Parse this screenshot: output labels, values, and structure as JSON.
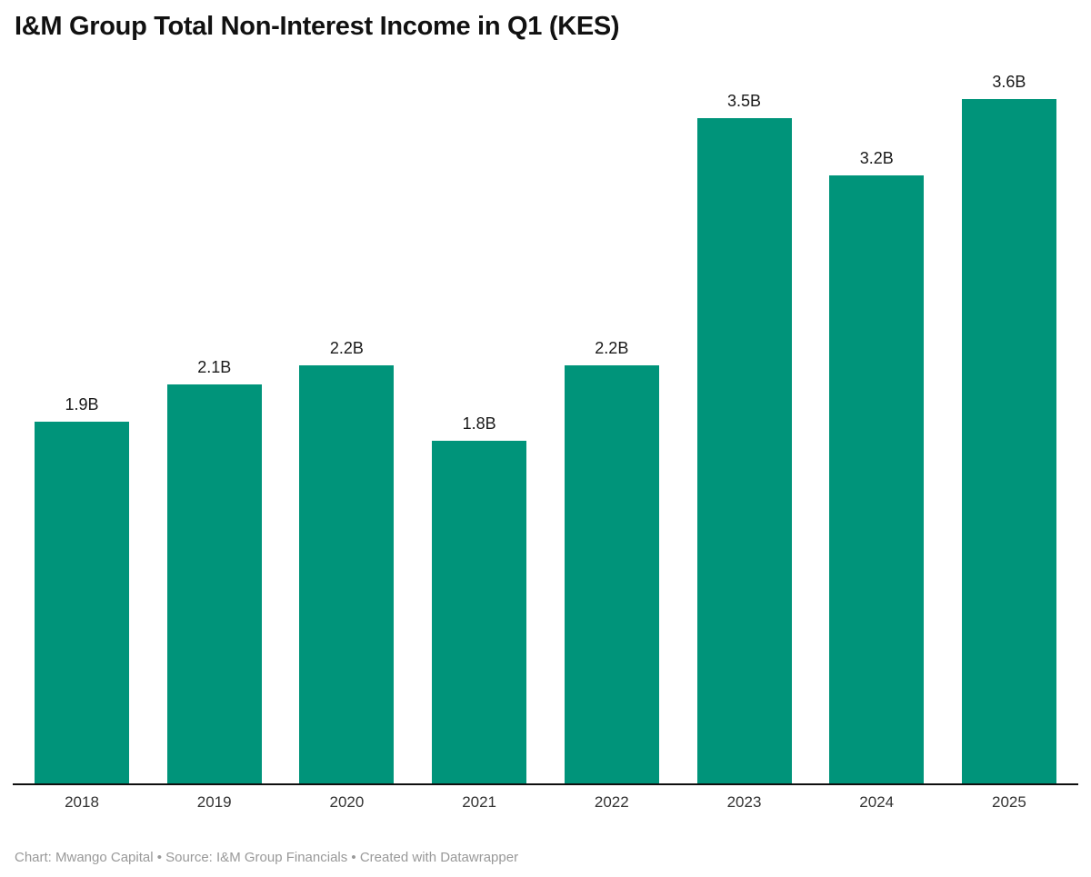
{
  "title": "I&M Group Total Non-Interest Income in Q1 (KES)",
  "footer": {
    "text": "Chart: Mwango Capital • Source: I&M Group Financials • Created with Datawrapper"
  },
  "colors": {
    "bar": "#00947a",
    "title": "#111111",
    "axis_line": "#0f0f0f",
    "value_label": "#1a1a1a",
    "tick_label": "#333333",
    "footer_text": "#999999"
  },
  "chart_data": {
    "type": "bar",
    "title": "I&M Group Total Non-Interest Income in Q1 (KES)",
    "categories": [
      "2018",
      "2019",
      "2020",
      "2021",
      "2022",
      "2023",
      "2024",
      "2025"
    ],
    "values": [
      1.9,
      2.1,
      2.2,
      1.8,
      2.2,
      3.5,
      3.2,
      3.6
    ],
    "value_labels": [
      "1.9B",
      "2.1B",
      "2.2B",
      "1.8B",
      "2.2B",
      "3.5B",
      "3.2B",
      "3.6B"
    ],
    "unit": "B",
    "xlabel": "",
    "ylabel": "",
    "ylim": [
      0,
      3.8
    ],
    "grid": false,
    "legend": false,
    "value_labels_position": "above-bars",
    "baseline_axis": true
  }
}
